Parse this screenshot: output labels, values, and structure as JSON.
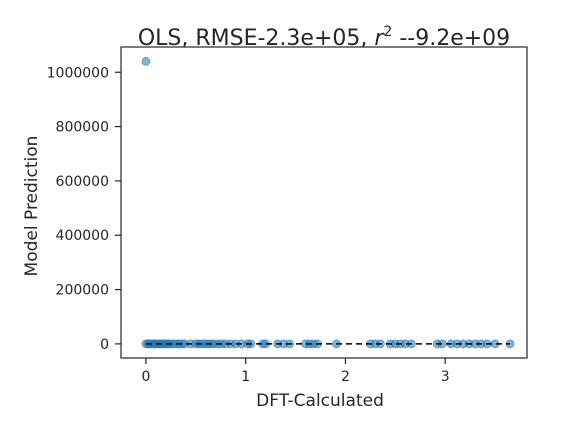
{
  "chart_data": {
    "type": "scatter",
    "title": {
      "prefix": "OLS, RMSE-2.3e+05, ",
      "r_symbol": "r",
      "r_superscript": "2",
      "suffix": " --9.2e+09"
    },
    "xlabel": "DFT-Calculated",
    "ylabel": "Model Prediction",
    "xlim": [
      -0.25,
      3.82
    ],
    "ylim": [
      -52000,
      1093000
    ],
    "xticks": [
      0,
      1,
      2,
      3
    ],
    "xtick_labels": [
      "0",
      "1",
      "2",
      "3"
    ],
    "yticks": [
      0,
      200000,
      400000,
      600000,
      800000,
      1000000
    ],
    "ytick_labels": [
      "0",
      "200000",
      "400000",
      "600000",
      "800000",
      "1000000"
    ],
    "grid": false,
    "parity_line": {
      "style": "dashed",
      "color": "#000000",
      "from": [
        0,
        0
      ],
      "to": [
        3.65,
        3.65
      ]
    },
    "series": [
      {
        "name": "predictions",
        "color": "#1f77b4",
        "x": [
          0.0,
          0.0,
          0.02,
          0.04,
          0.06,
          0.08,
          0.1,
          0.12,
          0.14,
          0.16,
          0.18,
          0.2,
          0.22,
          0.24,
          0.27,
          0.3,
          0.33,
          0.36,
          0.39,
          0.45,
          0.5,
          0.53,
          0.56,
          0.59,
          0.62,
          0.65,
          0.68,
          0.72,
          0.76,
          0.8,
          0.85,
          0.9,
          0.96,
          1.02,
          1.05,
          1.17,
          1.2,
          1.32,
          1.38,
          1.44,
          1.6,
          1.64,
          1.68,
          1.72,
          1.91,
          2.25,
          2.3,
          2.35,
          2.45,
          2.5,
          2.55,
          2.6,
          2.66,
          2.92,
          2.97,
          3.06,
          3.12,
          3.18,
          3.24,
          3.3,
          3.36,
          3.42,
          3.5,
          3.65
        ],
        "y": [
          1040000,
          0,
          0,
          0,
          0,
          0,
          0,
          0,
          0,
          0,
          0,
          0,
          0,
          0,
          0,
          0,
          0,
          0,
          0,
          0,
          0,
          0,
          0,
          0,
          0,
          0,
          0,
          0,
          0,
          0,
          0,
          0,
          0,
          0,
          0,
          0,
          0,
          0,
          0,
          0,
          0,
          0,
          0,
          0,
          0,
          0,
          0,
          0,
          0,
          0,
          0,
          0,
          0,
          0,
          0,
          0,
          0,
          0,
          0,
          0,
          0,
          0,
          0,
          0
        ]
      }
    ]
  }
}
